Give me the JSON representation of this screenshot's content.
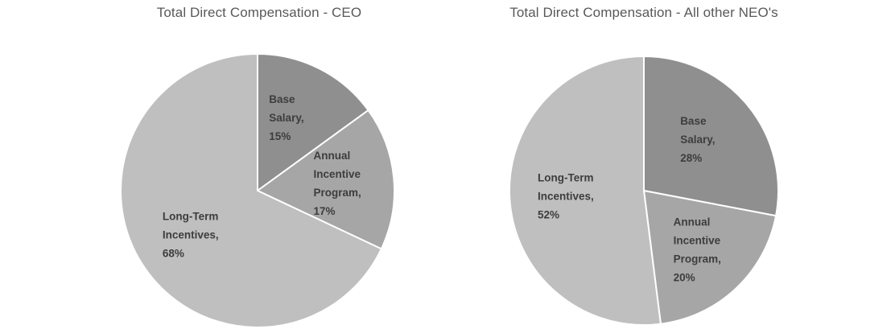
{
  "page": {
    "background": "#ffffff",
    "title_color": "#595959",
    "label_color": "#3d3d3d"
  },
  "chart_data": [
    {
      "type": "pie",
      "title": "Total Direct Compensation - CEO",
      "unit": "%",
      "start_angle_deg": 0,
      "direction": "clockwise",
      "legend": "none",
      "labels": "inside",
      "slices": [
        {
          "label": "Base Salary",
          "value": 15,
          "lines": [
            "Base",
            "Salary,",
            "15%"
          ],
          "color": "#8f8f8f"
        },
        {
          "label": "Annual Incentive Program",
          "value": 17,
          "lines": [
            "Annual",
            "Incentive",
            "Program,",
            "17%"
          ],
          "color": "#a6a6a6"
        },
        {
          "label": "Long-Term Incentives",
          "value": 68,
          "lines": [
            "Long-Term",
            "Incentives,",
            "68%"
          ],
          "color": "#bfbfbf"
        }
      ]
    },
    {
      "type": "pie",
      "title": "Total Direct Compensation - All other NEO's",
      "unit": "%",
      "start_angle_deg": 0,
      "direction": "clockwise",
      "legend": "none",
      "labels": "inside",
      "slices": [
        {
          "label": "Base Salary",
          "value": 28,
          "lines": [
            "Base",
            "Salary,",
            "28%"
          ],
          "color": "#8f8f8f"
        },
        {
          "label": "Annual Incentive Program",
          "value": 20,
          "lines": [
            "Annual",
            "Incentive",
            "Program,",
            "20%"
          ],
          "color": "#a6a6a6"
        },
        {
          "label": "Long-Term Incentives",
          "value": 52,
          "lines": [
            "Long-Term",
            "Incentives,",
            "52%"
          ],
          "color": "#bfbfbf"
        }
      ]
    }
  ]
}
